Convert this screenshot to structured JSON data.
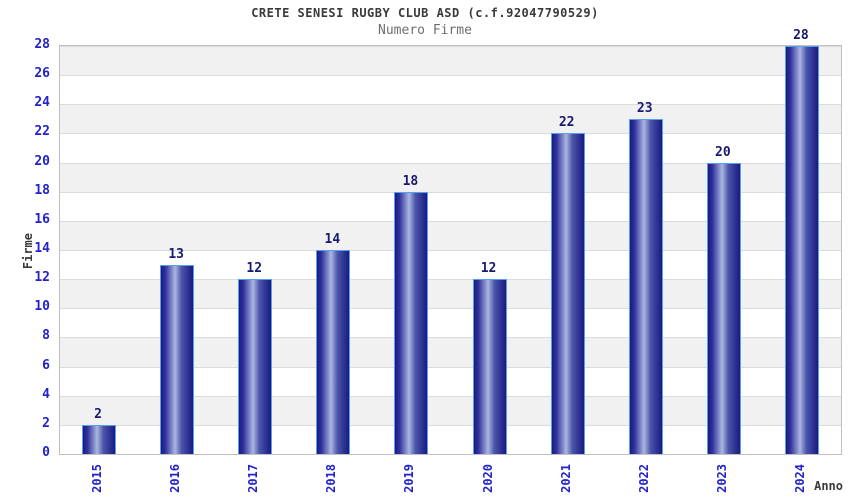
{
  "chart_data": {
    "type": "bar",
    "title": "CRETE SENESI RUGBY CLUB ASD (c.f.92047790529)",
    "subtitle": "Numero Firme",
    "xlabel": "Anno",
    "ylabel": "Firme",
    "categories": [
      "2015",
      "2016",
      "2017",
      "2018",
      "2019",
      "2020",
      "2021",
      "2022",
      "2023",
      "2024"
    ],
    "values": [
      2,
      13,
      12,
      14,
      18,
      12,
      22,
      23,
      20,
      28
    ],
    "ylim": [
      0,
      28
    ],
    "ytick_step": 2,
    "grid": "horizontal-alternating-bands",
    "legend": "none",
    "bar_value_labels": [
      2,
      13,
      12,
      14,
      18,
      12,
      22,
      23,
      20,
      28
    ],
    "colors": {
      "bar_edge": "#1a1a80",
      "bar_shade": "#31319c",
      "bar_mid": "#aab6e0",
      "bar_shade2": "#4a55aa",
      "bar_border": "#55a0f0",
      "tick_label": "#2222cc",
      "value_label": "#191970",
      "band_alt": "#f1f1f1",
      "grid_line": "#dcdcdc",
      "plot_border": "#c0c0c0",
      "title_text": "#3a3a3a",
      "subtitle_text": "#6e6e6e"
    }
  }
}
